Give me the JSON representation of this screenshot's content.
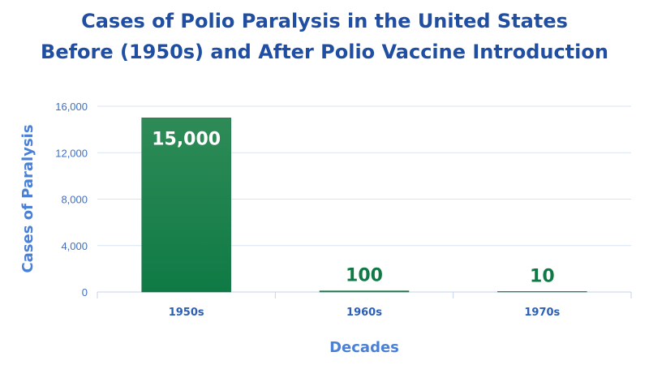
{
  "chart_data": {
    "type": "bar",
    "title_lines": [
      "Cases of Polio Paralysis in the United States",
      "Before (1950s) and After Polio Vaccine Introduction"
    ],
    "categories": [
      "1950s",
      "1960s",
      "1970s"
    ],
    "values": [
      15000,
      100,
      10
    ],
    "data_labels": [
      "15,000",
      "100",
      "10"
    ],
    "xlabel": "Decades",
    "ylabel": "Cases of Paralysis",
    "ylim": [
      0,
      16000
    ],
    "yticks": [
      0,
      4000,
      8000,
      12000,
      16000
    ],
    "ytick_labels": [
      "0",
      "4,000",
      "8,000",
      "12,000",
      "16,000"
    ],
    "grid": true,
    "legend": "none",
    "colors": {
      "bar_top": "#2e8b57",
      "bar_bottom": "#0f7a45",
      "label_inside": "#ffffff",
      "label_outside": "#0f7a45"
    }
  }
}
